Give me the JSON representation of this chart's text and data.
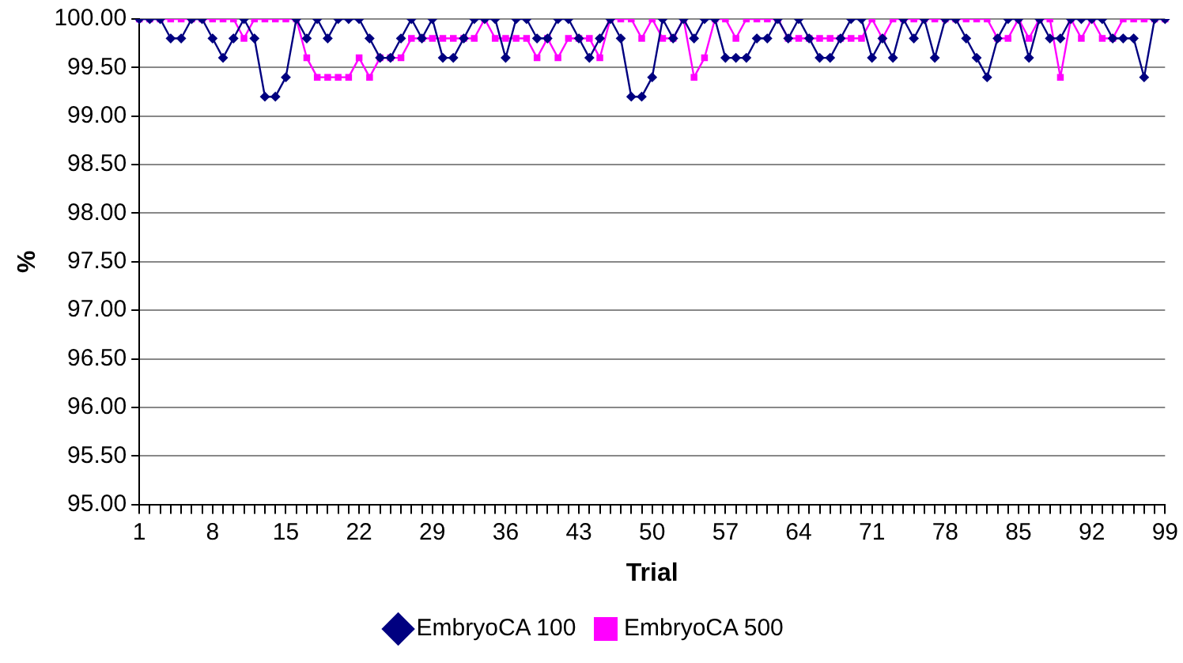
{
  "chart_data": {
    "type": "line",
    "xlabel": "Trial",
    "ylabel": "%",
    "categories": [
      "1",
      null,
      null,
      null,
      null,
      null,
      null,
      "8",
      null,
      null,
      null,
      null,
      null,
      null,
      "15",
      null,
      null,
      null,
      null,
      null,
      null,
      "22",
      null,
      null,
      null,
      null,
      null,
      null,
      "29",
      null,
      null,
      null,
      null,
      null,
      null,
      "36",
      null,
      null,
      null,
      null,
      null,
      null,
      "43",
      null,
      null,
      null,
      null,
      null,
      null,
      "50",
      null,
      null,
      null,
      null,
      null,
      null,
      "57",
      null,
      null,
      null,
      null,
      null,
      null,
      "64",
      null,
      null,
      null,
      null,
      null,
      null,
      "71",
      null,
      null,
      null,
      null,
      null,
      null,
      "78",
      null,
      null,
      null,
      null,
      null,
      null,
      "85",
      null,
      null,
      null,
      null,
      null,
      null,
      "92",
      null,
      null,
      null,
      null,
      null,
      null,
      "99"
    ],
    "series": [
      {
        "name": "EmbryoCA 100",
        "color": "#000080",
        "marker": "diamond",
        "values": [
          100,
          100,
          100,
          99.8,
          99.8,
          100,
          100,
          99.8,
          99.6,
          99.8,
          100,
          99.8,
          99.2,
          99.2,
          99.4,
          100,
          99.8,
          100,
          99.8,
          100,
          100,
          100,
          99.8,
          99.6,
          99.6,
          99.8,
          100,
          99.8,
          100,
          99.6,
          99.6,
          99.8,
          100,
          100,
          100,
          99.6,
          100,
          100,
          99.8,
          99.8,
          100,
          100,
          99.8,
          99.6,
          99.8,
          100,
          99.8,
          99.2,
          99.2,
          99.4,
          100,
          99.8,
          100,
          99.8,
          100,
          100,
          99.6,
          99.6,
          99.6,
          99.8,
          99.8,
          100,
          99.8,
          100,
          99.8,
          99.6,
          99.6,
          99.8,
          100,
          100,
          99.6,
          99.8,
          99.6,
          100,
          99.8,
          100,
          99.6,
          100,
          100,
          99.8,
          99.6,
          99.4,
          99.8,
          100,
          100,
          99.6,
          100,
          99.8,
          99.8,
          100,
          100,
          100,
          100,
          99.8,
          99.8,
          99.8,
          99.4,
          100,
          100
        ]
      },
      {
        "name": "EmbryoCA 500",
        "color": "#ff00ff",
        "marker": "square",
        "values": [
          100,
          100,
          100,
          100,
          100,
          100,
          100,
          100,
          100,
          100,
          99.8,
          100,
          100,
          100,
          100,
          100,
          99.6,
          99.4,
          99.4,
          99.4,
          99.4,
          99.6,
          99.4,
          99.6,
          99.6,
          99.6,
          99.8,
          99.8,
          99.8,
          99.8,
          99.8,
          99.8,
          99.8,
          100,
          99.8,
          99.8,
          99.8,
          99.8,
          99.6,
          99.8,
          99.6,
          99.8,
          99.8,
          99.8,
          99.6,
          100,
          100,
          100,
          99.8,
          100,
          99.8,
          99.8,
          100,
          99.4,
          99.6,
          100,
          100,
          99.8,
          100,
          100,
          100,
          100,
          99.8,
          99.8,
          99.8,
          99.8,
          99.8,
          99.8,
          99.8,
          99.8,
          100,
          99.8,
          100,
          100,
          100,
          100,
          100,
          100,
          100,
          100,
          100,
          100,
          99.8,
          99.8,
          100,
          99.8,
          100,
          100,
          99.4,
          100,
          99.8,
          100,
          99.8,
          99.8,
          100,
          100,
          100,
          100,
          100
        ]
      }
    ],
    "ylim": [
      95,
      100
    ],
    "yticks": [
      {
        "value": 95,
        "label": "95.00"
      },
      {
        "value": 95.5,
        "label": "95.50"
      },
      {
        "value": 96,
        "label": "96.00"
      },
      {
        "value": 96.5,
        "label": "96.50"
      },
      {
        "value": 97,
        "label": "97.00"
      },
      {
        "value": 97.5,
        "label": "97.50"
      },
      {
        "value": 98,
        "label": "98.00"
      },
      {
        "value": 98.5,
        "label": "98.50"
      },
      {
        "value": 99,
        "label": "99.00"
      },
      {
        "value": 99.5,
        "label": "99.50"
      },
      {
        "value": 100,
        "label": "100.00"
      }
    ],
    "grid": "y",
    "legend": "bottom"
  }
}
